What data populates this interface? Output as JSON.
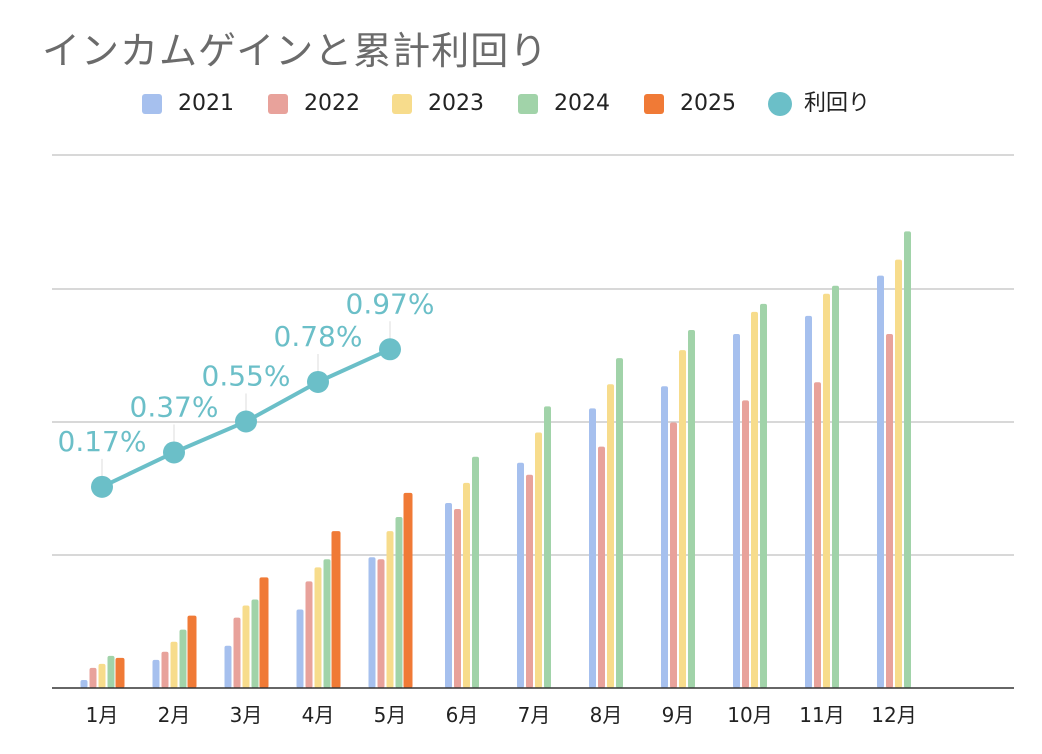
{
  "chart_data": {
    "type": "bar",
    "title": "インカムゲインと累計利回り",
    "categories": [
      "1月",
      "2月",
      "3月",
      "4月",
      "5月",
      "6月",
      "7月",
      "8月",
      "9月",
      "10月",
      "11月",
      "12月"
    ],
    "series": [
      {
        "name": "2021",
        "color": "#a6c0ee",
        "values": [
          0.4,
          1.4,
          2.1,
          3.9,
          6.5,
          9.2,
          11.2,
          13.9,
          15.0,
          17.6,
          18.5,
          20.5
        ]
      },
      {
        "name": "2022",
        "color": "#e8a29b",
        "values": [
          1.0,
          1.8,
          3.5,
          5.3,
          6.4,
          8.9,
          10.6,
          12.0,
          13.2,
          14.3,
          15.2,
          17.6
        ]
      },
      {
        "name": "2023",
        "color": "#f7dc8c",
        "values": [
          1.2,
          2.3,
          4.1,
          6.0,
          7.8,
          10.2,
          12.7,
          15.1,
          16.8,
          18.7,
          19.6,
          21.3
        ]
      },
      {
        "name": "2024",
        "color": "#a1d3a9",
        "values": [
          1.6,
          2.9,
          4.4,
          6.4,
          8.5,
          11.5,
          14.0,
          16.4,
          17.8,
          19.1,
          20.0,
          22.7
        ]
      },
      {
        "name": "2025",
        "color": "#f07a36",
        "values": [
          1.5,
          3.6,
          5.5,
          7.8,
          9.7,
          null,
          null,
          null,
          null,
          null,
          null,
          null
        ]
      }
    ],
    "line_series": {
      "name": "利回り",
      "color": "#6bbfc8",
      "values": [
        0.17,
        0.37,
        0.55,
        0.78,
        0.97
      ],
      "labels": [
        "0.17%",
        "0.37%",
        "0.55%",
        "0.78%",
        "0.97%"
      ],
      "ylim": [
        -1.0,
        2.1
      ]
    },
    "ylim": [
      0,
      26.5
    ],
    "grid": true,
    "legend": "top"
  }
}
